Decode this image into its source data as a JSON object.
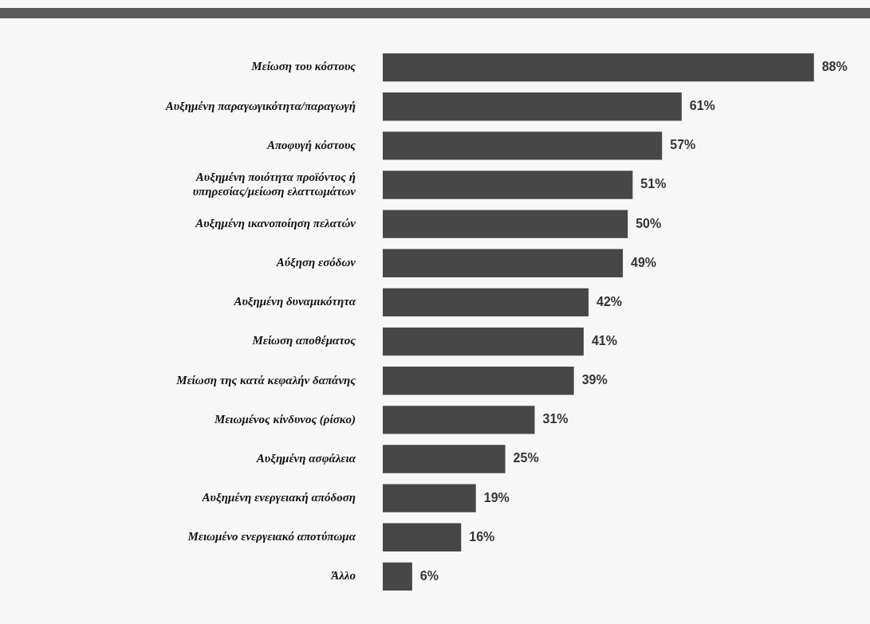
{
  "chart_data": {
    "type": "bar",
    "orientation": "horizontal",
    "categories": [
      "Μείωση του κόστους",
      "Αυξημένη παραγωγικότητα/παραγωγή",
      "Αποφυγή κόστους",
      "Αυξημένη ποιότητα προϊόντος ή υπηρεσίας/μείωση ελαττωμάτων",
      "Αυξημένη ικανοποίηση πελατών",
      "Αύξηση εσόδων",
      "Αυξημένη δυναμικότητα",
      "Μείωση αποθέματος",
      "Μείωση της κατά κεφαλήν δαπάνης",
      "Μειωμένος κίνδυνος (ρίσκο)",
      "Αυξημένη ασφάλεια",
      "Αυξημένη ενεργειακή απόδοση",
      "Μειωμένο ενεργειακό αποτύπωμα",
      "Άλλο"
    ],
    "values": [
      88,
      61,
      57,
      51,
      50,
      49,
      42,
      41,
      39,
      31,
      25,
      19,
      16,
      6
    ],
    "value_labels": [
      "88%",
      "61%",
      "57%",
      "51%",
      "50%",
      "49%",
      "42%",
      "41%",
      "39%",
      "31%",
      "25%",
      "19%",
      "16%",
      "6%"
    ],
    "color": "#474747"
  }
}
